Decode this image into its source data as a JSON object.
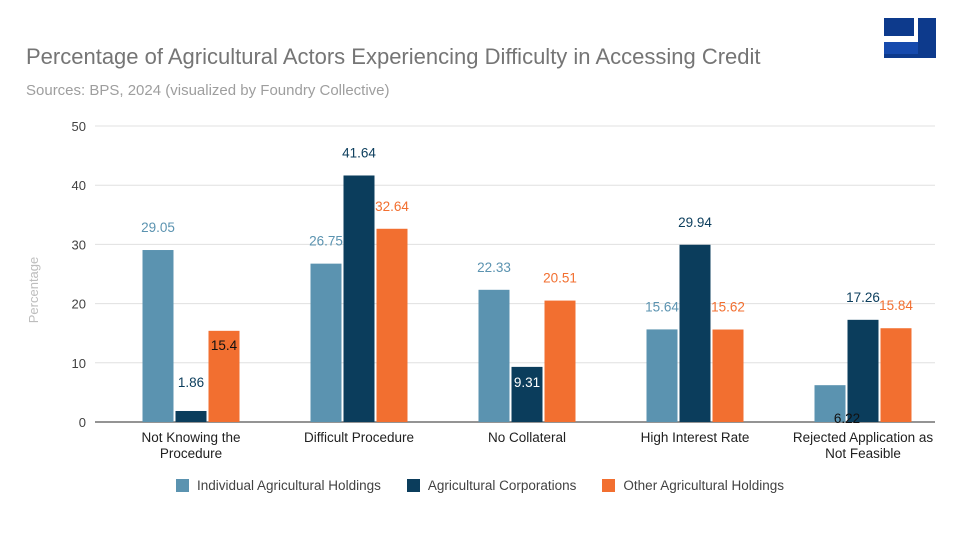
{
  "colors": {
    "individual": "#5b93b0",
    "corporations": "#0b3d5c",
    "other": "#f26f30",
    "grid": "#e0e0e0",
    "axis": "#555555",
    "logo": "#0d3a8c"
  },
  "logo": {
    "icon": "foundry-collective-logo"
  },
  "chart_data": {
    "type": "bar",
    "title": "Percentage of Agricultural Actors Experiencing Difficulty in Accessing Credit",
    "subtitle": "Sources: BPS, 2024 (visualized by Foundry Collective)",
    "xlabel": "",
    "ylabel": "Percentage",
    "ylim": [
      0,
      50
    ],
    "yticks": [
      "0",
      "10",
      "20",
      "30",
      "40",
      "50"
    ],
    "grid": true,
    "legend_position": "bottom",
    "categories": [
      [
        "Not Knowing the",
        "Procedure"
      ],
      [
        "Difficult Procedure"
      ],
      [
        "No Collateral"
      ],
      [
        "High Interest Rate"
      ],
      [
        "Rejected Application as",
        "Not Feasible"
      ]
    ],
    "series": [
      {
        "name": "Individual Agricultural Holdings",
        "values": [
          29.05,
          26.75,
          22.33,
          15.64,
          6.22
        ],
        "labels": [
          "29.05",
          "26.75",
          "22.33",
          "15.64",
          ""
        ]
      },
      {
        "name": "Agricultural Corporations",
        "values": [
          1.86,
          41.64,
          9.31,
          29.94,
          17.26
        ],
        "labels": [
          "1.86",
          "41.64",
          "9.31",
          "29.94",
          "17.26"
        ]
      },
      {
        "name": "Other Agricultural Holdings",
        "values": [
          15.4,
          32.64,
          20.51,
          15.62,
          15.84
        ],
        "labels": [
          "15.4",
          "32.64",
          "20.51",
          "15.62",
          "15.84"
        ]
      }
    ],
    "extra_label": "6.22"
  }
}
